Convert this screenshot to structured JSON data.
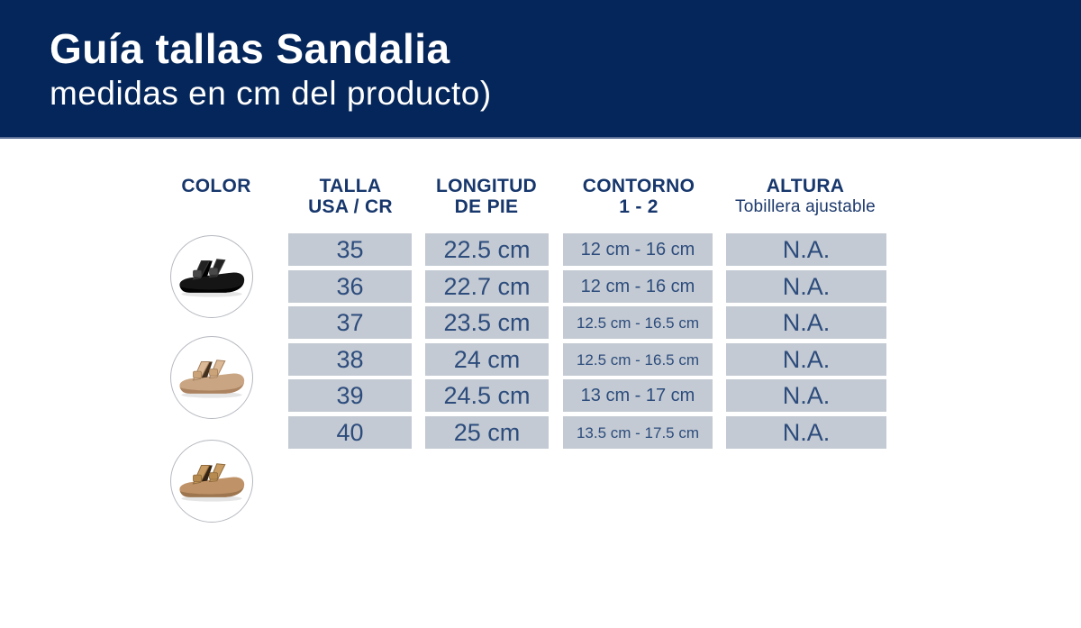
{
  "header": {
    "title": "Guía tallas Sandalia",
    "subtitle": "medidas en cm del producto)"
  },
  "table": {
    "columns": [
      {
        "line1": "COLOR",
        "line2": ""
      },
      {
        "line1": "TALLA",
        "line2": "USA / CR"
      },
      {
        "line1": "LONGITUD",
        "line2": "DE PIE"
      },
      {
        "line1": "CONTORNO",
        "line2": "1 - 2"
      },
      {
        "line1": "ALTURA",
        "line2": "Tobillera ajustable"
      }
    ],
    "rows": [
      {
        "talla": "35",
        "longitud": "22.5 cm",
        "contorno": "12 cm - 16 cm",
        "altura": "N.A."
      },
      {
        "talla": "36",
        "longitud": "22.7 cm",
        "contorno": "12 cm - 16 cm",
        "altura": "N.A."
      },
      {
        "talla": "37",
        "longitud": "23.5 cm",
        "contorno": "12.5 cm - 16.5 cm",
        "altura": "N.A."
      },
      {
        "talla": "38",
        "longitud": "24 cm",
        "contorno": "12.5 cm - 16.5 cm",
        "altura": "N.A."
      },
      {
        "talla": "39",
        "longitud": "24.5 cm",
        "contorno": "13 cm - 17 cm",
        "altura": "N.A."
      },
      {
        "talla": "40",
        "longitud": "25 cm",
        "contorno": "13.5 cm - 17.5 cm",
        "altura": "N.A."
      }
    ]
  },
  "products": [
    {
      "name": "product-photo-sandalia-negra",
      "label": "black two-strap buckle sandal",
      "sole": "#151515",
      "sole_dark": "#000000",
      "strap": "#222222",
      "strap_edge": "#3c3c3c",
      "buckle": "#484848",
      "inner": "#000000"
    },
    {
      "name": "product-photo-sandalia-beige",
      "label": "beige two-strap buckle sandal",
      "sole": "#c9a583",
      "sole_dark": "#a87f5c",
      "strap": "#dcba97",
      "strap_edge": "#a5805d",
      "buckle": "#cba379",
      "inner": "#42301f"
    },
    {
      "name": "product-photo-sandalia-camel",
      "label": "camel two-strap buckle sandal",
      "sole": "#bf9268",
      "sole_dark": "#99724c",
      "strap": "#c89c63",
      "strap_edge": "#8f6a3c",
      "buckle": "#b78b4f",
      "inner": "#352413"
    }
  ],
  "colors": {
    "header_bg": "#05265a",
    "header_divider": "#5d6f97",
    "header_text": "#ffffff",
    "column_header_text": "#17376c",
    "cell_bg": "#c3cad3",
    "cell_text": "#2d4c7c",
    "circle_border": "#b5b8bf"
  }
}
